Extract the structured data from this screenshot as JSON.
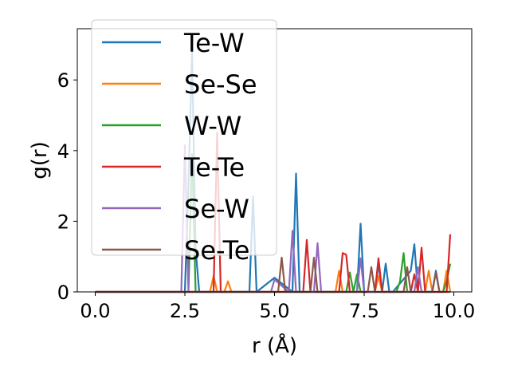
{
  "chart_data": {
    "type": "line",
    "xlabel": "r (Å)",
    "ylabel": "g(r)",
    "xlim": [
      -0.5,
      10.5
    ],
    "ylim": [
      0,
      7.45
    ],
    "xticks": [
      0.0,
      2.5,
      5.0,
      7.5,
      10.0
    ],
    "xtick_labels": [
      "0.0",
      "2.5",
      "5.0",
      "7.5",
      "10.0"
    ],
    "yticks": [
      0,
      2,
      4,
      6
    ],
    "ytick_labels": [
      "0",
      "2",
      "4",
      "6"
    ],
    "grid": false,
    "legend_position": "top-left",
    "series": [
      {
        "name": "Te-W",
        "color": "#1f77b4",
        "x": [
          0,
          2.5,
          2.6,
          2.7,
          2.8,
          2.9,
          4.3,
          4.4,
          4.5,
          5.0,
          5.5,
          5.6,
          5.7,
          7.3,
          7.4,
          7.5,
          7.8,
          7.9,
          8.0,
          8.1,
          8.2,
          8.3,
          8.8,
          8.9,
          9.0,
          9.4,
          9.5,
          9.6,
          9.9
        ],
        "y": [
          0,
          0,
          3.0,
          6.8,
          1.2,
          0,
          0,
          2.7,
          0,
          0.4,
          0,
          3.35,
          0,
          0,
          1.93,
          0,
          0,
          0.8,
          0,
          0.8,
          0,
          0,
          0.6,
          1.35,
          0,
          0,
          0.6,
          0,
          0
        ]
      },
      {
        "name": "Se-Se",
        "color": "#ff7f0e",
        "x": [
          0,
          3.2,
          3.3,
          3.4,
          3.6,
          3.7,
          3.8,
          6.7,
          6.8,
          6.9,
          7.8,
          7.9,
          8.0,
          9.2,
          9.3,
          9.4,
          9.7,
          9.8,
          9.9
        ],
        "y": [
          0,
          0,
          0.45,
          0,
          0,
          0.3,
          0,
          0,
          0.6,
          0,
          0,
          0.45,
          0,
          0,
          0.6,
          0,
          0,
          0.6,
          0
        ]
      },
      {
        "name": "W-W",
        "color": "#2ca02c",
        "x": [
          0,
          2.6,
          2.7,
          2.8,
          7.0,
          7.1,
          7.2,
          7.3,
          7.4,
          8.4,
          8.5,
          8.6,
          8.7,
          9.7,
          9.8,
          9.9
        ],
        "y": [
          0,
          0,
          3.9,
          0,
          0,
          0.55,
          0,
          0.5,
          0,
          0,
          0.3,
          1.1,
          0,
          0,
          0.3,
          0.8
        ]
      },
      {
        "name": "Te-Te",
        "color": "#d62728",
        "x": [
          0,
          3.3,
          3.4,
          3.5,
          5.8,
          5.9,
          6.0,
          6.8,
          6.9,
          7.0,
          7.1,
          7.8,
          7.9,
          8.0,
          8.8,
          8.9,
          9.0,
          9.1,
          9.2,
          9.3,
          9.8,
          9.9
        ],
        "y": [
          0,
          0,
          4.5,
          0,
          0,
          1.47,
          0,
          0,
          1.1,
          1.05,
          0,
          0,
          0.95,
          0,
          0,
          0.5,
          0,
          1.25,
          0,
          0,
          0,
          1.63
        ]
      },
      {
        "name": "Se-W",
        "color": "#9467bd",
        "x": [
          0,
          2.4,
          2.5,
          2.6,
          4.9,
          5.0,
          5.4,
          5.5,
          5.6,
          6.1,
          6.2,
          6.3,
          7.3,
          7.4,
          7.5,
          8.9,
          9.0,
          9.1
        ],
        "y": [
          0,
          0,
          4.15,
          0,
          0,
          0.35,
          0,
          1.73,
          0,
          0,
          1.38,
          0,
          0,
          0.95,
          0,
          0,
          0.7,
          0
        ]
      },
      {
        "name": "Se-Te",
        "color": "#8c564b",
        "x": [
          0,
          5.1,
          5.2,
          5.3,
          6.0,
          6.1,
          6.2,
          7.6,
          7.7,
          7.8,
          8.6,
          8.7,
          8.8,
          9.4,
          9.5,
          9.6
        ],
        "y": [
          0,
          0,
          0.97,
          0,
          0,
          0.97,
          0,
          0,
          0.7,
          0,
          0,
          0.7,
          0,
          0,
          0.55,
          0
        ]
      }
    ]
  }
}
